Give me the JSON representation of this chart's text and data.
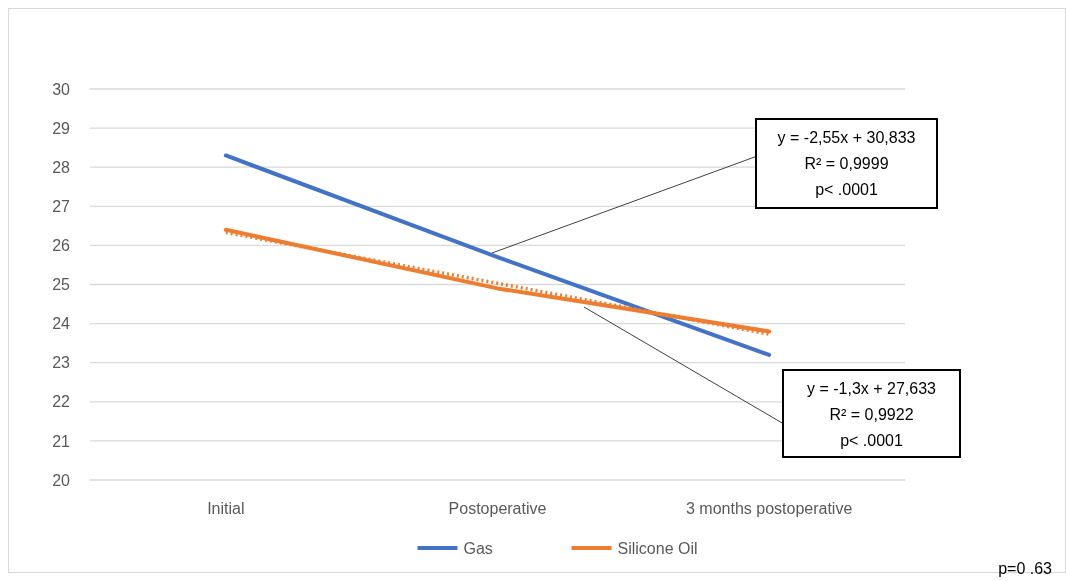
{
  "chart_data": {
    "type": "line",
    "categories": [
      "Initial",
      "Postoperative",
      "3 months postoperative"
    ],
    "series": [
      {
        "name": "Gas",
        "color": "#4472c4",
        "values": [
          28.3,
          25.7,
          23.2
        ]
      },
      {
        "name": "Silicone Oil",
        "color": "#ed7d31",
        "values": [
          26.4,
          24.9,
          23.8
        ]
      },
      {
        "type": "line",
        "color": "#ed7d31",
        "line_style": "dotted",
        "values": [
          26.33,
          25.03,
          23.73
        ]
      }
    ],
    "ylim": [
      20,
      30
    ],
    "yticks": [
      20,
      21,
      22,
      23,
      24,
      25,
      26,
      27,
      28,
      29,
      30
    ],
    "grid": "y",
    "legend": "bottom",
    "marker": "none",
    "line_style": "solid",
    "annotations": [
      "y = -2,55x + 30,833\nR² = 0,9999\np< .0001",
      "y = -1,3x + 27,633\nR² = 0,9922\np< .0001",
      "p=0 .63"
    ]
  }
}
